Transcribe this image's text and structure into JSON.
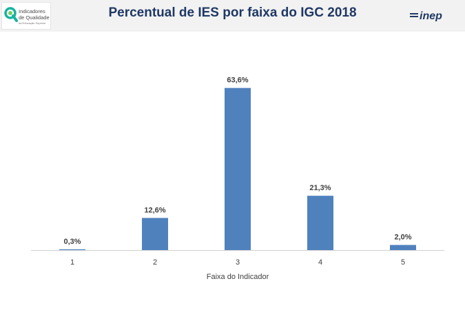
{
  "header": {
    "title": "Percentual de IES por faixa do IGC 2018",
    "logo_left_line1": "Indicadores",
    "logo_left_line2": "de Qualidade",
    "logo_left_line3": "da Educação Superior",
    "logo_right_text": "inep",
    "logo_left_icon": "magnifier-leaf-icon"
  },
  "colors": {
    "bar": "#4f81bd",
    "title": "#1f3864",
    "header_bg": "#f2f2f2",
    "logo_accent": "#17b3a0",
    "inep": "#1f3864"
  },
  "chart_data": {
    "type": "bar",
    "title": "",
    "xlabel": "Faixa do Indicador",
    "ylabel": "",
    "categories": [
      "1",
      "2",
      "3",
      "4",
      "5"
    ],
    "values": [
      0.3,
      12.6,
      63.6,
      21.3,
      2.0
    ],
    "data_labels": [
      "0,3%",
      "12,6%",
      "63,6%",
      "21,3%",
      "2,0%"
    ],
    "ylim": [
      0,
      70
    ],
    "grid": false,
    "legend": "none"
  }
}
